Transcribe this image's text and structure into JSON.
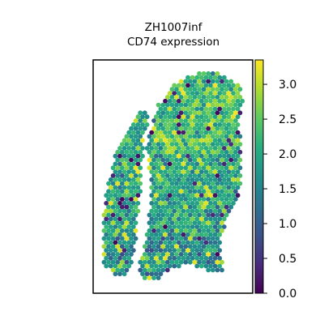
{
  "chart_data": {
    "type": "spatial-scatter",
    "title": "ZH1007inf",
    "subtitle": "CD74 expression",
    "xlabel": "",
    "ylabel": "",
    "axes_ticks_shown": false,
    "grid": false,
    "colormap": "viridis",
    "colorbar": {
      "range": [
        0.0,
        3.35
      ],
      "ticks": [
        0.0,
        0.5,
        1.0,
        1.5,
        2.0,
        2.5,
        3.0
      ],
      "tick_labels": [
        "0.0",
        "0.5",
        "1.0",
        "1.5",
        "2.0",
        "2.5",
        "3.0"
      ],
      "placement": "right"
    },
    "colors": {
      "viridis_low": "#440154",
      "viridis_mid": "#21918c",
      "viridis_high": "#fde725"
    }
  }
}
